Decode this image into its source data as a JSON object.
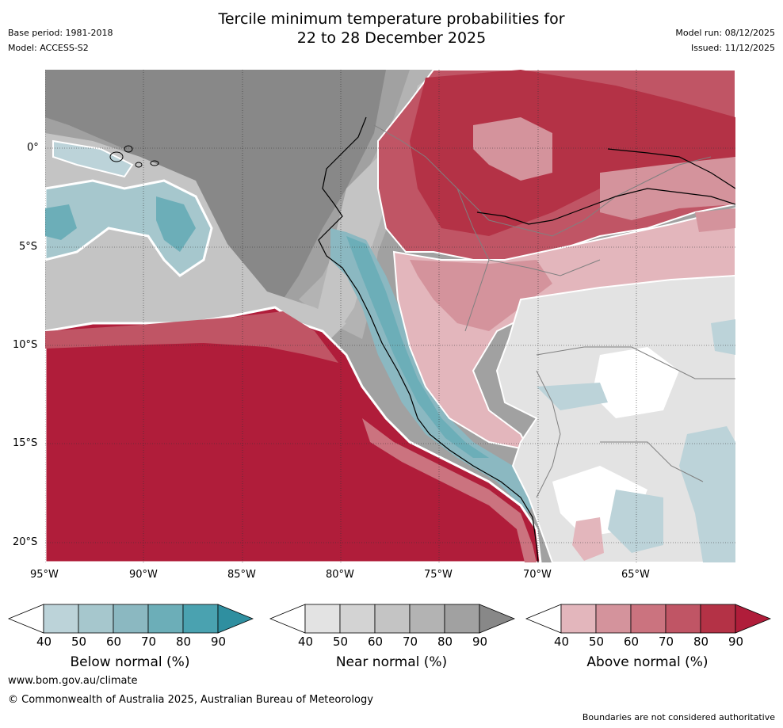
{
  "header": {
    "title_line1": "Tercile minimum temperature probabilities for",
    "title_line2": "22 to 28 December 2025",
    "base_period": "Base period: 1981-2018",
    "model": "Model: ACCESS-S2",
    "model_run": "Model run: 08/12/2025",
    "issued": "Issued: 11/12/2025"
  },
  "axes": {
    "lon_labels": [
      "95°W",
      "90°W",
      "85°W",
      "80°W",
      "75°W",
      "70°W",
      "65°W"
    ],
    "lat_labels": [
      "0°",
      "5°S",
      "10°S",
      "15°S",
      "20°S"
    ]
  },
  "legends": [
    {
      "title": "Below normal (%)",
      "ticks": [
        "40",
        "50",
        "60",
        "70",
        "80",
        "90"
      ],
      "colors": [
        "#bcd3d9",
        "#a6c7cd",
        "#8bb8c1",
        "#6caeb8",
        "#4aa2b0",
        "#2f8fa0"
      ]
    },
    {
      "title": "Near normal (%)",
      "ticks": [
        "40",
        "50",
        "60",
        "70",
        "80",
        "90"
      ],
      "colors": [
        "#e3e3e3",
        "#d3d3d3",
        "#c4c4c4",
        "#b3b3b3",
        "#a1a1a1",
        "#888888"
      ]
    },
    {
      "title": "Above normal (%)",
      "ticks": [
        "40",
        "50",
        "60",
        "70",
        "80",
        "90"
      ],
      "colors": [
        "#e3b6bc",
        "#d4939c",
        "#cb737f",
        "#c05565",
        "#b43246",
        "#b01d3a"
      ]
    }
  ],
  "footer": {
    "url": "www.bom.gov.au/climate",
    "copyright": "© Commonwealth of Australia 2025, Australian Bureau of Meteorology",
    "note": "Boundaries are not considered authoritative"
  }
}
